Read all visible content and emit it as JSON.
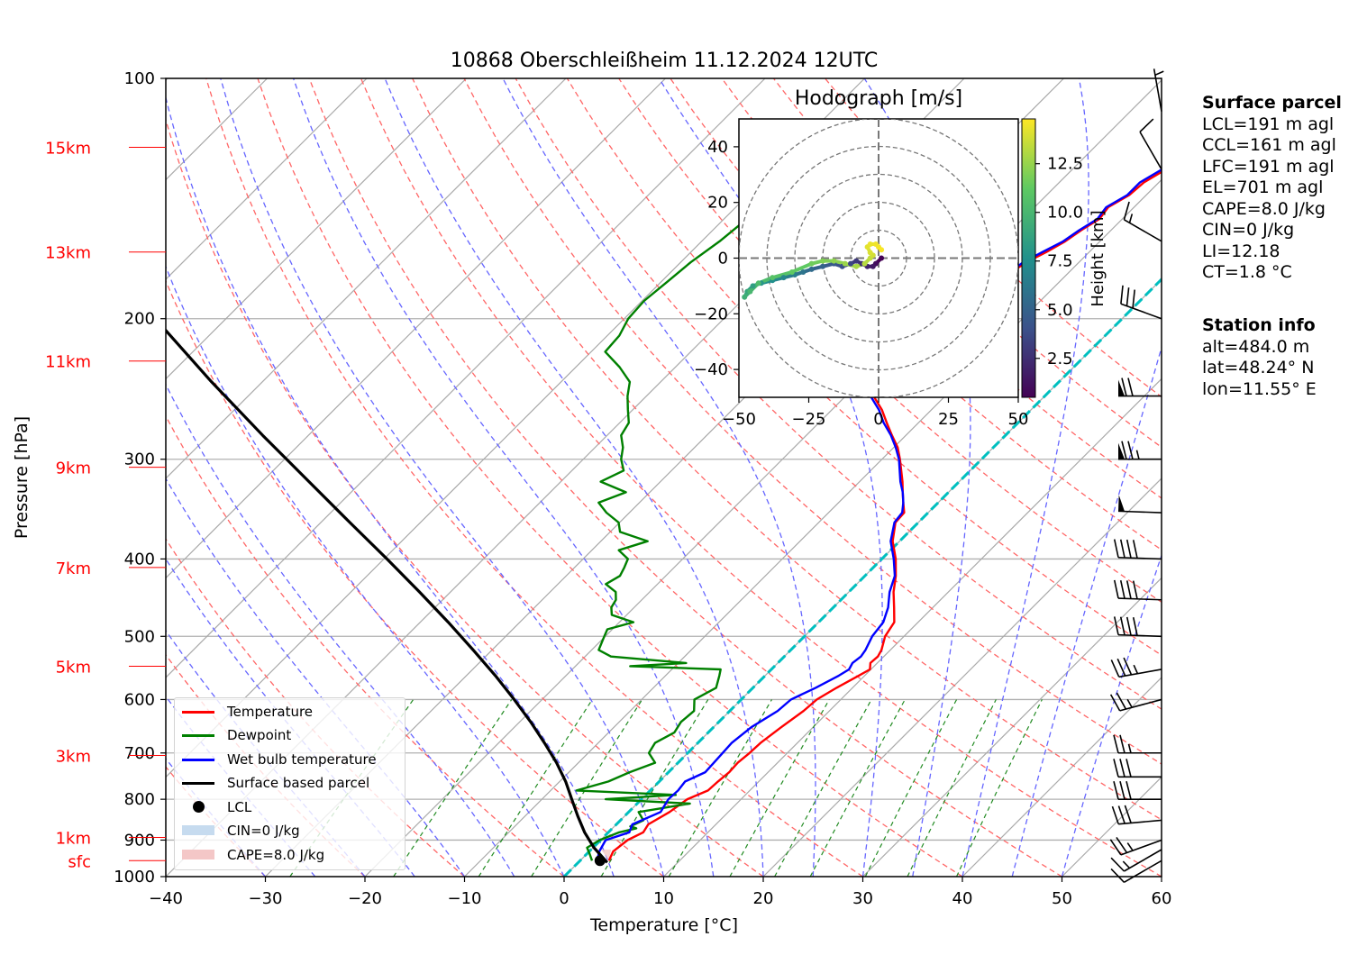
{
  "title": "10868 Oberschleißheim 11.12.2024 12UTC",
  "xlabel": "Temperature [°C]",
  "ylabel": "Pressure [hPa]",
  "surface_parcel": {
    "heading": "Surface parcel",
    "lines": [
      "LCL=191 m agl",
      "CCL=161 m agl",
      "LFC=191 m agl",
      "EL=701 m agl",
      "CAPE=8.0 J/kg",
      "CIN=0 J/kg",
      "LI=12.18",
      "CT=1.8 °C"
    ]
  },
  "station_info": {
    "heading": "Station info",
    "lines": [
      "alt=484.0 m",
      "lat=48.24° N",
      "lon=11.55° E"
    ]
  },
  "legend": {
    "temperature": "Temperature",
    "dewpoint": "Dewpoint",
    "wetbulb": "Wet bulb temperature",
    "parcel": "Surface based parcel",
    "lcl": "LCL",
    "cin": "CIN=0 J/kg",
    "cape": "CAPE=8.0 J/kg"
  },
  "colors": {
    "temperature": "#ff0000",
    "dewpoint": "#008000",
    "wetbulb": "#0000ff",
    "parcel": "#000000",
    "isotherm": "#00bfbf",
    "dry_adiabat": "#ff6666",
    "moist_adiabat": "#6666ff",
    "mixing_ratio": "#228b22",
    "height_label": "#ff0000",
    "cin_fill": "#c6dbef",
    "cape_fill": "#f4c7c7"
  },
  "chart_data": [
    {
      "type": "line",
      "subtype": "skew-T log-P",
      "title": "10868 Oberschleißheim 11.12.2024 12UTC",
      "xlabel": "Temperature [°C]",
      "ylabel": "Pressure [hPa]",
      "xlim": [
        -40,
        60
      ],
      "ylim": [
        1000,
        100
      ],
      "yscale": "log",
      "grid": true,
      "legend_location": "lower-left",
      "x_ticks": [
        -40,
        -30,
        -20,
        -10,
        0,
        10,
        20,
        30,
        40,
        50,
        60
      ],
      "y_ticks": [
        1000,
        900,
        800,
        700,
        600,
        500,
        400,
        300,
        200,
        100
      ],
      "height_labels": [
        {
          "label": "sfc",
          "pressure": 955
        },
        {
          "label": "1km",
          "pressure": 893
        },
        {
          "label": "3km",
          "pressure": 705
        },
        {
          "label": "5km",
          "pressure": 545
        },
        {
          "label": "7km",
          "pressure": 410
        },
        {
          "label": "9km",
          "pressure": 307
        },
        {
          "label": "11km",
          "pressure": 226
        },
        {
          "label": "13km",
          "pressure": 165
        },
        {
          "label": "15km",
          "pressure": 122
        }
      ],
      "series": [
        {
          "name": "Temperature",
          "pressure": [
            955,
            930,
            900,
            880,
            860,
            830,
            800,
            780,
            760,
            740,
            720,
            700,
            680,
            650,
            620,
            600,
            580,
            560,
            550,
            540,
            530,
            520,
            500,
            480,
            460,
            440,
            420,
            400,
            380,
            360,
            350,
            340,
            330,
            320,
            300,
            290,
            280,
            270,
            260,
            250,
            240,
            230,
            225,
            220,
            215,
            210,
            205,
            200,
            195,
            190,
            185,
            180,
            175,
            170,
            165,
            160,
            155,
            150,
            145,
            140,
            135,
            130,
            125,
            122
          ],
          "values": [
            2.9,
            2.4,
            2.7,
            3.5,
            3.2,
            4.1,
            4.6,
            5.8,
            5.9,
            6.1,
            6.0,
            6.2,
            6.3,
            6.8,
            7.4,
            7.6,
            8.4,
            9.4,
            9.9,
            9.3,
            9.4,
            9.1,
            8.1,
            7.6,
            6.1,
            4.5,
            3.1,
            1.4,
            -0.7,
            -2.3,
            -2.4,
            -3.5,
            -4.6,
            -5.7,
            -8.2,
            -9.6,
            -11.4,
            -13.2,
            -15.0,
            -17.2,
            -19.6,
            -22.1,
            -22.8,
            -22.9,
            -21.0,
            -20.4,
            -19.2,
            -18.2,
            -17.2,
            -17.5,
            -16.4,
            -15.1,
            -15.8,
            -15.3,
            -14.3,
            -13.5,
            -13.0,
            -12.3,
            -12.6,
            -11.7,
            -11.5,
            -10.6,
            -10.3,
            -10.8
          ]
        },
        {
          "name": "Dewpoint",
          "pressure": [
            955,
            935,
            920,
            900,
            880,
            870,
            865,
            850,
            830,
            810,
            800,
            790,
            780,
            760,
            740,
            720,
            700,
            680,
            660,
            640,
            620,
            600,
            580,
            560,
            550,
            545,
            540,
            530,
            520,
            500,
            490,
            480,
            470,
            460,
            450,
            440,
            430,
            420,
            410,
            400,
            390,
            380,
            370,
            360,
            350,
            340,
            330,
            320,
            310,
            300,
            290,
            280,
            270,
            260,
            250,
            240,
            230,
            220,
            210,
            200,
            190,
            180,
            170,
            160,
            150,
            140,
            130,
            125,
            122
          ],
          "values": [
            1.2,
            0.2,
            -0.6,
            -0.1,
            1.1,
            2.4,
            1.6,
            2.3,
            1.0,
            5.3,
            -3.6,
            3.0,
            -7.4,
            -5.1,
            -3.9,
            -2.3,
            -3.9,
            -4.3,
            -3.4,
            -3.8,
            -3.6,
            -4.7,
            -3.7,
            -4.6,
            -5.1,
            -14.5,
            -9.2,
            -17.4,
            -19.3,
            -20.1,
            -20.5,
            -18.6,
            -21.5,
            -22.3,
            -22.6,
            -23.4,
            -25.2,
            -24.6,
            -25.0,
            -25.5,
            -27.3,
            -25.3,
            -29.0,
            -30.1,
            -32.3,
            -34.1,
            -32.4,
            -36.0,
            -34.8,
            -36.2,
            -37.2,
            -38.6,
            -39.1,
            -40.5,
            -41.9,
            -43.1,
            -45.6,
            -48.6,
            -48.8,
            -49.6,
            -49.8,
            -49.4,
            -49.0,
            -48.2,
            -47.7,
            -45.4,
            -42.6,
            -41.0,
            -40.6
          ]
        },
        {
          "name": "Wet bulb temperature",
          "pressure": [
            955,
            930,
            900,
            880,
            860,
            830,
            800,
            780,
            760,
            740,
            720,
            700,
            680,
            650,
            620,
            600,
            580,
            560,
            550,
            540,
            530,
            520,
            500,
            480,
            460,
            440,
            420,
            400,
            380,
            360,
            350,
            340,
            330,
            320,
            300,
            290,
            280,
            270,
            260,
            250,
            240,
            230,
            225,
            220,
            215,
            210,
            205,
            200,
            195,
            190,
            185,
            180,
            175,
            170,
            165,
            160,
            155,
            150,
            145,
            140,
            135,
            130,
            125,
            122
          ],
          "values": [
            1.7,
            1.0,
            0.5,
            2.1,
            1.6,
            3.2,
            2.7,
            2.8,
            2.6,
            3.7,
            3.6,
            3.5,
            3.4,
            3.8,
            4.8,
            5.0,
            6.3,
            7.4,
            7.8,
            7.5,
            7.7,
            7.5,
            6.8,
            6.5,
            5.5,
            4.1,
            3.0,
            1.2,
            -0.9,
            -2.4,
            -2.6,
            -3.5,
            -4.6,
            -5.9,
            -8.3,
            -9.8,
            -11.5,
            -13.5,
            -15.3,
            -17.5,
            -19.9,
            -22.2,
            -22.9,
            -22.8,
            -21.2,
            -20.6,
            -19.4,
            -18.5,
            -17.4,
            -17.7,
            -16.6,
            -15.5,
            -16.0,
            -15.6,
            -14.7,
            -13.7,
            -13.2,
            -12.5,
            -12.8,
            -11.9,
            -11.9,
            -11.0,
            -10.5,
            -11.0
          ]
        },
        {
          "name": "Surface based parcel",
          "pressure": [
            960,
            920,
            880,
            840,
            800,
            760,
            720,
            680,
            640,
            600,
            560,
            520,
            480,
            440,
            400,
            360,
            320,
            280,
            240,
            200,
            160,
            130,
            100
          ],
          "values": [
            2.9,
            0.1,
            -2.4,
            -4.7,
            -7.0,
            -9.4,
            -12.2,
            -15.4,
            -18.9,
            -22.8,
            -27.1,
            -31.9,
            -37.2,
            -43.1,
            -49.7,
            -57.1,
            -65.3,
            -74.6,
            -85.1,
            -97.1,
            -111.0,
            -123.0,
            -139.0
          ]
        }
      ],
      "lcl": {
        "pressure": 955,
        "temperature": 2.0
      },
      "zero_isotherm_label": "0 °C isotherm"
    },
    {
      "type": "scatter",
      "title": "Hodograph [m/s]",
      "xlim": [
        -50,
        50
      ],
      "ylim": [
        -50,
        50
      ],
      "x_ticks": [
        -50,
        -25,
        0,
        25,
        50
      ],
      "y_ticks": [
        -40,
        -20,
        0,
        20,
        40
      ],
      "rings": [
        10,
        20,
        30,
        40,
        50
      ],
      "colorbar": {
        "label": "Height [km]",
        "range": [
          0.5,
          14.8
        ],
        "ticks": [
          2.5,
          5.0,
          7.5,
          10.0,
          12.5
        ]
      },
      "u": [
        1,
        -1,
        -2,
        -4,
        -6,
        -8,
        -10,
        -13,
        -16,
        -20,
        -24,
        -27,
        -30,
        -34,
        -38,
        -42,
        -45,
        -47,
        -48,
        -46,
        -43,
        -38,
        -31,
        -24,
        -20,
        -16,
        -12,
        -8,
        -5,
        -3,
        -2,
        -3,
        -4,
        -3,
        -1,
        0,
        1
      ],
      "v": [
        0,
        -2,
        -3,
        -3,
        -2,
        -1,
        -2,
        -3,
        -2,
        -3,
        -4,
        -5,
        -6,
        -7,
        -8,
        -9,
        -10,
        -12,
        -14,
        -12,
        -9,
        -7,
        -5,
        -2,
        -1,
        -1,
        -2,
        -3,
        -2,
        0,
        1,
        2,
        4,
        5,
        5,
        4,
        3
      ],
      "height_km": [
        0.5,
        1.0,
        1.5,
        2.0,
        2.5,
        3.0,
        3.5,
        4.0,
        4.5,
        5.0,
        5.5,
        6.0,
        6.5,
        7.0,
        7.5,
        8.0,
        8.5,
        9.0,
        9.5,
        10.0,
        10.4,
        10.8,
        11.2,
        11.6,
        12.0,
        12.3,
        12.6,
        12.9,
        13.2,
        13.5,
        13.8,
        14.0,
        14.2,
        14.4,
        14.5,
        14.6,
        14.7
      ]
    }
  ],
  "wind_barbs": [
    {
      "pressure": 955,
      "speed_kt": 10,
      "direction": 240
    },
    {
      "pressure": 925,
      "speed_kt": 15,
      "direction": 240
    },
    {
      "pressure": 900,
      "speed_kt": 25,
      "direction": 250
    },
    {
      "pressure": 850,
      "speed_kt": 30,
      "direction": 265
    },
    {
      "pressure": 800,
      "speed_kt": 30,
      "direction": 270
    },
    {
      "pressure": 750,
      "speed_kt": 30,
      "direction": 270
    },
    {
      "pressure": 700,
      "speed_kt": 25,
      "direction": 270
    },
    {
      "pressure": 600,
      "speed_kt": 25,
      "direction": 255
    },
    {
      "pressure": 550,
      "speed_kt": 35,
      "direction": 260
    },
    {
      "pressure": 500,
      "speed_kt": 40,
      "direction": 272
    },
    {
      "pressure": 450,
      "speed_kt": 40,
      "direction": 272
    },
    {
      "pressure": 400,
      "speed_kt": 40,
      "direction": 272
    },
    {
      "pressure": 350,
      "speed_kt": 50,
      "direction": 272
    },
    {
      "pressure": 300,
      "speed_kt": 75,
      "direction": 270
    },
    {
      "pressure": 250,
      "speed_kt": 70,
      "direction": 270
    },
    {
      "pressure": 200,
      "speed_kt": 30,
      "direction": 290
    },
    {
      "pressure": 160,
      "speed_kt": 15,
      "direction": 300
    },
    {
      "pressure": 130,
      "speed_kt": 10,
      "direction": 330
    },
    {
      "pressure": 110,
      "speed_kt": 5,
      "direction": 350
    }
  ]
}
